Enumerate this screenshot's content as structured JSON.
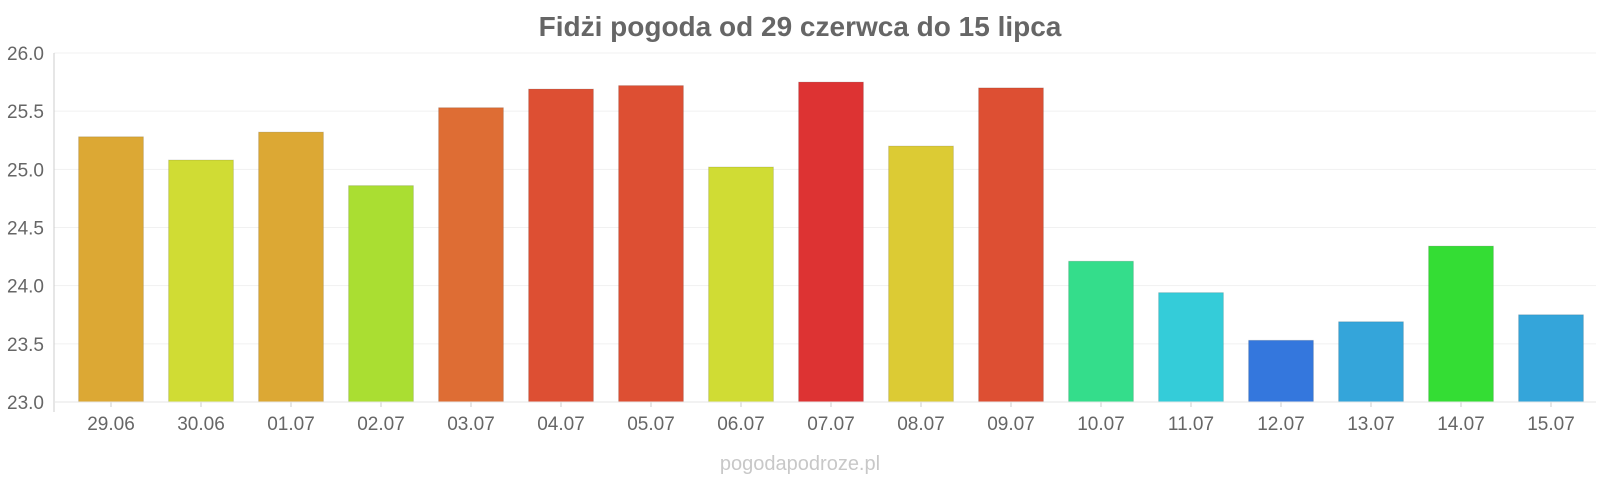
{
  "chart_data": {
    "type": "bar",
    "title": "Fidżi pogoda od 29 czerwca do 15 lipca",
    "xlabel": "",
    "ylabel": "",
    "ylim": [
      23.0,
      26.0
    ],
    "yticks": [
      "23.0",
      "23.5",
      "24.0",
      "24.5",
      "25.0",
      "25.5",
      "26.0"
    ],
    "grid": true,
    "categories": [
      "29.06",
      "30.06",
      "01.07",
      "02.07",
      "03.07",
      "04.07",
      "05.07",
      "06.07",
      "07.07",
      "08.07",
      "09.07",
      "10.07",
      "11.07",
      "12.07",
      "13.07",
      "14.07",
      "15.07"
    ],
    "values": [
      25.28,
      25.08,
      25.32,
      24.86,
      25.53,
      25.69,
      25.72,
      25.02,
      25.75,
      25.2,
      25.7,
      24.21,
      23.94,
      23.53,
      23.69,
      24.34,
      23.75
    ],
    "colors": [
      "#dca834",
      "#d0dc34",
      "#dca834",
      "#aade32",
      "#de6d34",
      "#dd4f33",
      "#dd4f33",
      "#d0dc34",
      "#dd3333",
      "#dccb34",
      "#dd4f33",
      "#34dd8b",
      "#34ccd9",
      "#3477dd",
      "#34a5da",
      "#34dd34",
      "#34a5da"
    ]
  },
  "watermark": "pogodapodroze.pl"
}
